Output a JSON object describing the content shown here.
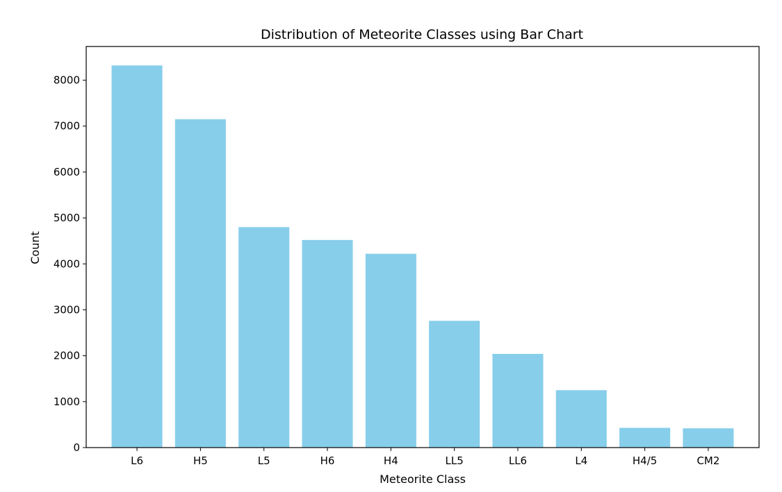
{
  "chart_data": {
    "type": "bar",
    "title": "Distribution of Meteorite Classes using Bar Chart",
    "xlabel": "Meteorite Class",
    "ylabel": "Count",
    "categories": [
      "L6",
      "H5",
      "L5",
      "H6",
      "H4",
      "LL5",
      "LL6",
      "L4",
      "H4/5",
      "CM2"
    ],
    "values": [
      8320,
      7150,
      4800,
      4520,
      4220,
      2760,
      2040,
      1250,
      430,
      420
    ],
    "ylim": [
      0,
      8733
    ],
    "yticks": [
      0,
      1000,
      2000,
      3000,
      4000,
      5000,
      6000,
      7000,
      8000
    ],
    "bar_color": "#87ceeb",
    "grid": false
  }
}
